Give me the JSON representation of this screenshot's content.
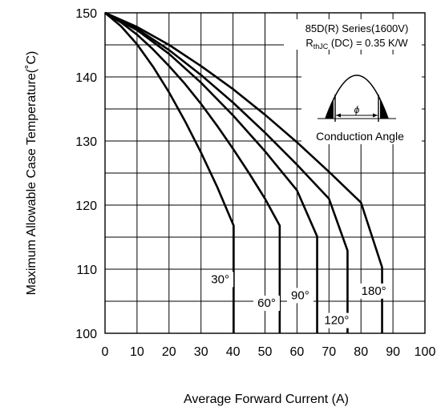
{
  "chart_data": {
    "type": "line",
    "xlabel": "Average Forward Current (A)",
    "ylabel": "Maximum Allowable Case Temperature(˚C)",
    "xlim": [
      0,
      100
    ],
    "ylim": [
      100,
      150
    ],
    "x_ticks": [
      "0",
      "10",
      "20",
      "30",
      "40",
      "50",
      "60",
      "70",
      "80",
      "90",
      "100"
    ],
    "y_ticks": [
      "100",
      "110",
      "120",
      "130",
      "140",
      "150"
    ],
    "grid": true,
    "annotations": {
      "series_line": "85D(R) Series(1600V)",
      "rth_symbol": "R",
      "rth_sub": "thJC",
      "rth_rest": " (DC) = 0.35 K/W",
      "conduction_label": "Conduction Angle",
      "phi_symbol": "ϕ"
    },
    "series": [
      {
        "name": "30°",
        "x": [
          0,
          5,
          10,
          15,
          20,
          25,
          30,
          35,
          40.2,
          40.2
        ],
        "y": [
          150,
          147.9,
          145.1,
          141.6,
          137.6,
          133.1,
          128.2,
          122.9,
          116.8,
          100
        ]
      },
      {
        "name": "60°",
        "x": [
          0,
          5,
          10,
          15,
          20,
          25,
          30,
          35,
          40,
          45,
          50,
          54.6,
          54.6
        ],
        "y": [
          150,
          148.5,
          146.6,
          144.3,
          141.7,
          138.9,
          135.8,
          132.4,
          128.8,
          125,
          121,
          116.8,
          100
        ]
      },
      {
        "name": "90°",
        "x": [
          0,
          10,
          20,
          30,
          40,
          50,
          60,
          66.3,
          66.3
        ],
        "y": [
          150,
          147.3,
          143.6,
          139.1,
          134,
          128.4,
          122.3,
          115.1,
          100
        ]
      },
      {
        "name": "120°",
        "x": [
          0,
          10,
          20,
          30,
          40,
          50,
          60,
          70,
          75.8,
          75.8
        ],
        "y": [
          150,
          147.5,
          144.2,
          140.3,
          136,
          131.3,
          126.3,
          121,
          112.9,
          100
        ]
      },
      {
        "name": "180°",
        "x": [
          0,
          10,
          20,
          30,
          40,
          50,
          60,
          70,
          80,
          86.6,
          86.6
        ],
        "y": [
          150,
          147.8,
          145,
          141.7,
          138.1,
          134.1,
          129.8,
          125.2,
          120.4,
          110.3,
          100
        ]
      }
    ],
    "series_labels": [
      "30°",
      "60°",
      "90°",
      "120°",
      "180°"
    ]
  }
}
